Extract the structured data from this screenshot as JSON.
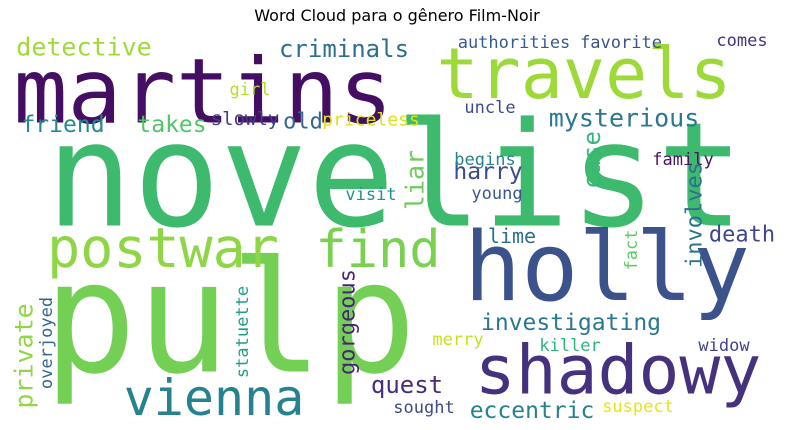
{
  "chart_data": {
    "type": "wordcloud",
    "title": "Word Cloud para o gênero Film-Noir",
    "words": [
      {
        "text": "novelist",
        "color": "#3dba6e"
      },
      {
        "text": "pulp",
        "color": "#74d055"
      },
      {
        "text": "martins",
        "color": "#440f63"
      },
      {
        "text": "travels",
        "color": "#9ed93a"
      },
      {
        "text": "holly",
        "color": "#3b528b"
      },
      {
        "text": "shadowy",
        "color": "#46317e"
      },
      {
        "text": "postwar",
        "color": "#8ed645"
      },
      {
        "text": "find",
        "color": "#7ad151"
      },
      {
        "text": "vienna",
        "color": "#26828e"
      },
      {
        "text": "detective",
        "color": "#a0da39"
      },
      {
        "text": "criminals",
        "color": "#2e6f8e"
      },
      {
        "text": "authorities",
        "color": "#365c8d"
      },
      {
        "text": "favorite",
        "color": "#3b528b"
      },
      {
        "text": "comes",
        "color": "#46327e"
      },
      {
        "text": "mysterious",
        "color": "#2a788e"
      },
      {
        "text": "friend",
        "color": "#23898e"
      },
      {
        "text": "takes",
        "color": "#52c569"
      },
      {
        "text": "slowly",
        "color": "#433e85"
      },
      {
        "text": "old",
        "color": "#31688e"
      },
      {
        "text": "priceless",
        "color": "#dde318"
      },
      {
        "text": "uncle",
        "color": "#3e4989"
      },
      {
        "text": "girl",
        "color": "#b5de2b"
      },
      {
        "text": "case",
        "color": "#35b779"
      },
      {
        "text": "harry",
        "color": "#3e4a89"
      },
      {
        "text": "begins",
        "color": "#25838e"
      },
      {
        "text": "family",
        "color": "#471365"
      },
      {
        "text": "liar",
        "color": "#6ccd5a"
      },
      {
        "text": "young",
        "color": "#38588c"
      },
      {
        "text": "visit",
        "color": "#21918c"
      },
      {
        "text": "involves",
        "color": "#2c728e"
      },
      {
        "text": "lime",
        "color": "#2d708e"
      },
      {
        "text": "death",
        "color": "#3f4788"
      },
      {
        "text": "fact",
        "color": "#5ec962"
      },
      {
        "text": "gorgeous",
        "color": "#482677"
      },
      {
        "text": "investigating",
        "color": "#2a788e"
      },
      {
        "text": "private",
        "color": "#90d743"
      },
      {
        "text": "overjoyed",
        "color": "#31688e"
      },
      {
        "text": "statuette",
        "color": "#1f9e89"
      },
      {
        "text": "merry",
        "color": "#c8e020"
      },
      {
        "text": "killer",
        "color": "#2fb47c"
      },
      {
        "text": "widow",
        "color": "#414487"
      },
      {
        "text": "quest",
        "color": "#472d7b"
      },
      {
        "text": "eccentric",
        "color": "#26818e"
      },
      {
        "text": "sought",
        "color": "#3e4989"
      },
      {
        "text": "suspect",
        "color": "#e7e419"
      }
    ]
  }
}
